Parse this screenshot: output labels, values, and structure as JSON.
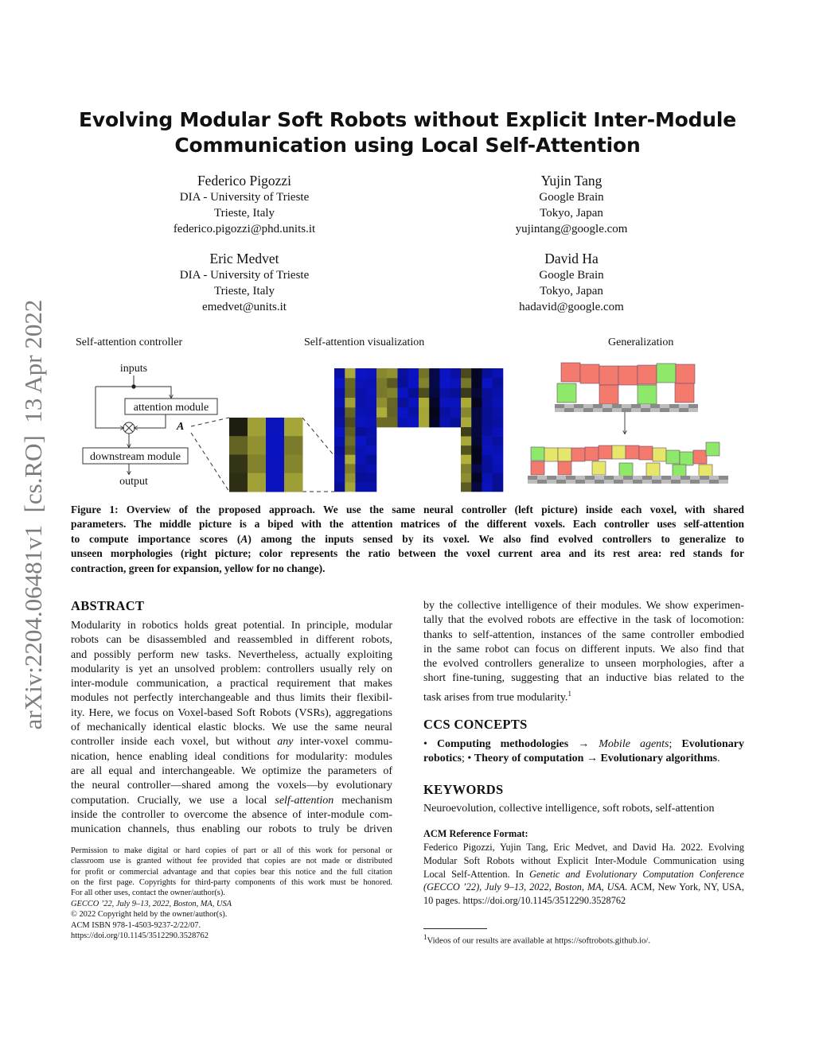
{
  "title": {
    "line1": "Evolving Modular Soft Robots without Explicit Inter-Module",
    "line2": "Communication using Local Self-Attention"
  },
  "authors": [
    {
      "name": "Federico Pigozzi",
      "affiliation": "DIA - University of Trieste",
      "location": "Trieste, Italy",
      "email": "federico.pigozzi@phd.units.it"
    },
    {
      "name": "Yujin Tang",
      "affiliation": "Google Brain",
      "location": "Tokyo, Japan",
      "email": "yujintang@google.com"
    },
    {
      "name": "Eric Medvet",
      "affiliation": "DIA - University of Trieste",
      "location": "Trieste, Italy",
      "email": "emedvet@units.it"
    },
    {
      "name": "David Ha",
      "affiliation": "Google Brain",
      "location": "Tokyo, Japan",
      "email": "hadavid@google.com"
    }
  ],
  "arxiv_stamp": "arXiv:2204.06481v1  [cs.RO]  13 Apr 2022",
  "figure": {
    "panel_labels": [
      "Self-attention controller",
      "Self-attention visualization",
      "Generalization"
    ],
    "diagram": {
      "inputs": "inputs",
      "attention_module": "attention module",
      "A": "A",
      "downstream_module": "downstream module",
      "output": "output"
    },
    "colors": {
      "blue": "#0a14c8",
      "yellow": "#b4b43c",
      "dark": "#1e1e10",
      "contraction": "#f47a6e",
      "expansion": "#8ee86a",
      "no_change": "#e6e66a"
    },
    "caption_lines": [
      "Figure 1: Overview of the proposed approach. We use the same neural controller (left picture) inside each voxel, with shared",
      "parameters. The middle picture is a biped with the attention matrices of the different voxels. Each controller uses self-attention",
      [
        "to compute importance scores (",
        {
          "t": "A",
          "s": "i"
        },
        ") among the inputs sensed by its voxel. We also find evolved controllers to generalize to"
      ],
      "unseen morphologies (right picture; color represents the ratio between the voxel current area and its rest area: red stands for",
      "contraction, green for expansion, yellow for no change)."
    ]
  },
  "abstract": {
    "heading": "ABSTRACT",
    "lines_left": [
      "Modularity in robotics holds great potential. In principle, modular",
      "robots can be disassembled and reassembled in different robots,",
      "and possibly perform new tasks. Nevertheless, actually exploiting",
      "modularity is yet an unsolved problem: controllers usually rely on",
      "inter-module communication, a practical requirement that makes",
      "modules not perfectly interchangeable and thus limits their flexibil-",
      "ity. Here, we focus on Voxel-based Soft Robots (VSRs), aggregations",
      "of mechanically identical elastic blocks. We use the same neural",
      [
        "controller inside each voxel, but without ",
        {
          "t": "any",
          "s": "i"
        },
        " inter-voxel commu-"
      ],
      "nication, hence enabling ideal conditions for modularity: modules",
      "are all equal and interchangeable. We optimize the parameters of",
      "the neural controller—shared among the voxels—by evolutionary",
      [
        "computation. Crucially, we use a local ",
        {
          "t": "self-attention",
          "s": "i"
        },
        " mechanism"
      ],
      "inside the controller to overcome the absence of inter-module com-",
      "munication channels, thus enabling our robots to truly be driven x"
    ],
    "lines_right": [
      "by the collective intelligence of their modules. We show experimen-",
      "tally that the evolved robots are effective in the task of locomotion:",
      "thanks to self-attention, instances of the same controller embodied",
      "in the same robot can focus on different inputs. We also find that",
      "the evolved controllers generalize to unseen morphologies, after a",
      "short fine-tuning, suggesting that an inductive bias related to the",
      [
        "task arises from true modularity.",
        {
          "t": "1",
          "s": "sup"
        }
      ]
    ]
  },
  "ccs": {
    "heading": "CCS CONCEPTS",
    "lines": [
      [
        "• ",
        {
          "t": "Computing methodologies",
          "s": "b"
        },
        " → ",
        {
          "t": "Mobile agents",
          "s": "i"
        },
        "; ",
        {
          "t": "Evolutionary",
          "s": "b"
        }
      ],
      [
        {
          "t": "robotics",
          "s": "b"
        },
        "; • ",
        {
          "t": "Theory of computation",
          "s": "b"
        },
        " → ",
        {
          "t": "Evolutionary algorithms",
          "s": "b"
        },
        "."
      ]
    ]
  },
  "keywords": {
    "heading": "KEYWORDS",
    "text": "Neuroevolution, collective intelligence, soft robots, self-attention"
  },
  "acm_reference": {
    "heading": "ACM Reference Format:",
    "lines": [
      "Federico Pigozzi, Yujin Tang, Eric Medvet, and David Ha. 2022. Evolving",
      "Modular Soft Robots without Explicit Inter-Module Communication using",
      [
        "Local Self-Attention. In ",
        {
          "t": "Genetic and Evolutionary Computation Conference",
          "s": "i"
        }
      ],
      [
        {
          "t": "(GECCO ’22), July 9–13, 2022, Boston, MA, USA",
          "s": "i"
        },
        ". ACM, New York, NY, USA,"
      ],
      "10 pages. https://doi.org/10.1145/3512290.3528762"
    ]
  },
  "footnote": {
    "mark": "1",
    "text": "Videos of our results are available at https://softrobots.github.io/."
  },
  "permission": {
    "lines": [
      "Permission to make digital or hard copies of part or all of this work for personal or",
      "classroom use is granted without fee provided that copies are not made or distributed",
      "for profit or commercial advantage and that copies bear this notice and the full citation",
      "on the first page. Copyrights for third-party components of this work must be honored.",
      "For all other uses, contact the owner/author(s)."
    ],
    "venue": "GECCO ’22, July 9–13, 2022, Boston, MA, USA",
    "copyright": "© 2022 Copyright held by the owner/author(s).",
    "isbn": "ACM ISBN 978-1-4503-9237-2/22/07.",
    "doi": "https://doi.org/10.1145/3512290.3528762"
  }
}
